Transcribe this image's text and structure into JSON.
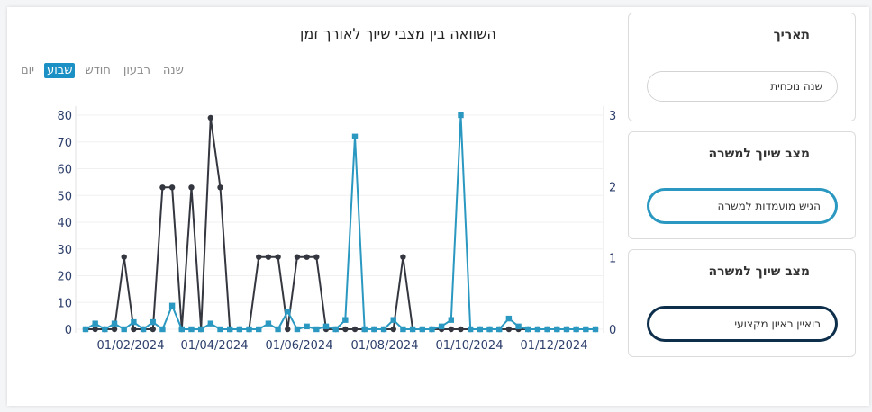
{
  "chart": {
    "title": "השוואה בין מצבי שיוך לאורך זמן",
    "periods": [
      "שנה",
      "רבעון",
      "חודש",
      "שבוע",
      "יום"
    ],
    "active_period": "שבוע"
  },
  "filters": {
    "date": {
      "title": "תאריך",
      "value": "שנה נוכחית"
    },
    "status1": {
      "title": "מצב שיוך למשרה",
      "value": "הגיש מועמדות למשרה",
      "color": "#2a98c0"
    },
    "status2": {
      "title": "מצב שיוך למשרה",
      "value": "רואיין ראיון מקצועי",
      "color": "#0e2f4c"
    }
  },
  "chart_data": {
    "type": "line",
    "x_ticks": [
      "01/02/2024",
      "01/04/2024",
      "01/06/2024",
      "01/08/2024",
      "01/10/2024",
      "01/12/2024"
    ],
    "y_left": {
      "ticks": [
        0,
        10,
        20,
        30,
        40,
        50,
        60,
        70,
        80
      ],
      "range": [
        0,
        80
      ]
    },
    "y_right": {
      "ticks": [
        0,
        1,
        2,
        3
      ],
      "range": [
        0,
        3
      ]
    },
    "series": [
      {
        "axis": "left",
        "color": "#34373f",
        "marker": "circle",
        "values": [
          0,
          0,
          0,
          0,
          27,
          0,
          0,
          0,
          53,
          53,
          0,
          53,
          0,
          79,
          53,
          0,
          0,
          0,
          27,
          27,
          27,
          0,
          27,
          27,
          27,
          0,
          0,
          0,
          0,
          0,
          0,
          0,
          0,
          27,
          0,
          0,
          0,
          0,
          0,
          0,
          0,
          0,
          0,
          0,
          0,
          0,
          0,
          0,
          0,
          0,
          0,
          0,
          0,
          0
        ]
      },
      {
        "axis": "right",
        "color": "#2a98c0",
        "marker": "square",
        "values": [
          0,
          0.08,
          0,
          0.08,
          0,
          0.1,
          0,
          0.1,
          0,
          0.33,
          0,
          0,
          0,
          0.08,
          0,
          0,
          0,
          0,
          0,
          0.08,
          0,
          0.25,
          0,
          0.04,
          0,
          0.04,
          0,
          0.13,
          2.7,
          0,
          0,
          0,
          0.13,
          0,
          0,
          0,
          0,
          0.04,
          0.13,
          3,
          0,
          0,
          0,
          0,
          0.15,
          0.04,
          0,
          0,
          0,
          0,
          0,
          0,
          0,
          0
        ]
      }
    ]
  }
}
